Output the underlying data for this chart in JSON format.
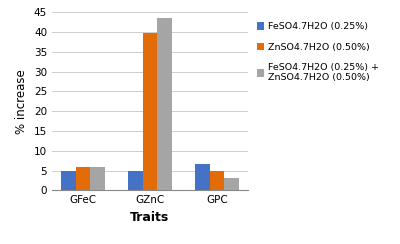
{
  "categories": [
    "GFeC",
    "GZnC",
    "GPC"
  ],
  "series": [
    {
      "label": "FeSO4.7H2O (0.25%)",
      "values": [
        5.0,
        5.0,
        6.7
      ],
      "color": "#4472C4"
    },
    {
      "label": "ZnSO4.7H2O (0.50%)",
      "values": [
        6.0,
        39.7,
        4.9
      ],
      "color": "#E36C09"
    },
    {
      "label": "FeSO4.7H2O (0.25%) +\nZnSO4.7H2O (0.50%)",
      "values": [
        5.9,
        43.5,
        3.2
      ],
      "color": "#A5A5A5"
    }
  ],
  "xlabel": "Traits",
  "ylabel": "% increase",
  "ylim": [
    0,
    45
  ],
  "yticks": [
    0,
    5,
    10,
    15,
    20,
    25,
    30,
    35,
    40,
    45
  ],
  "title": "",
  "background_color": "#FFFFFF",
  "bar_width": 0.22,
  "legend_fontsize": 6.8,
  "axis_label_fontsize": 8.5,
  "xlabel_fontsize": 9,
  "tick_fontsize": 7.5
}
